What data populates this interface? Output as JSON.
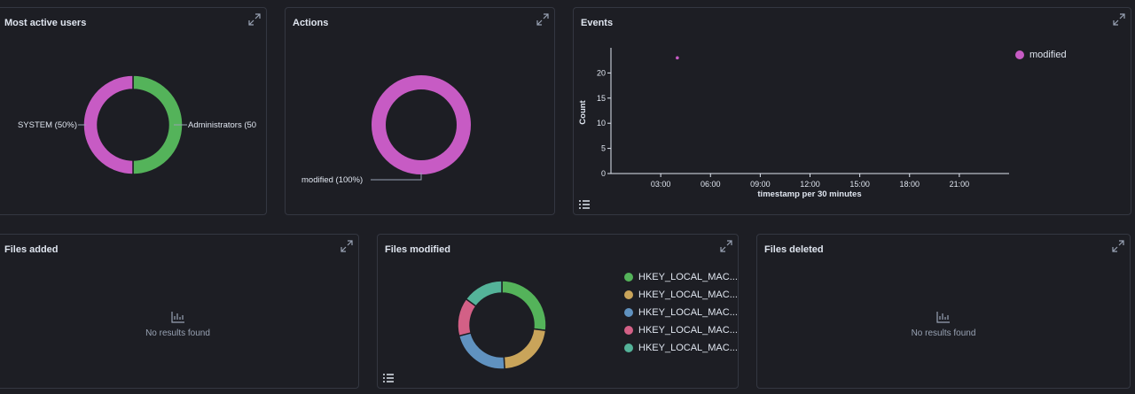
{
  "panels": {
    "most_active_users": {
      "title": "Most active users",
      "labels": [
        "SYSTEM (50%)",
        "Administrators (50"
      ]
    },
    "actions": {
      "title": "Actions",
      "labels": [
        "modified (100%)"
      ]
    },
    "events": {
      "title": "Events",
      "legend": [
        "modified"
      ],
      "ylabel": "Count",
      "xlabel": "timestamp per 30 minutes",
      "yticks": [
        "20",
        "15",
        "10",
        "5",
        "0"
      ],
      "xticks": [
        "03:00",
        "06:00",
        "09:00",
        "12:00",
        "15:00",
        "18:00",
        "21:00"
      ]
    },
    "files_added": {
      "title": "Files added",
      "empty_text": "No results found"
    },
    "files_modified": {
      "title": "Files modified",
      "legend": [
        "HKEY_LOCAL_MAC...",
        "HKEY_LOCAL_MAC...",
        "HKEY_LOCAL_MAC...",
        "HKEY_LOCAL_MAC...",
        "HKEY_LOCAL_MAC..."
      ]
    },
    "files_deleted": {
      "title": "Files deleted",
      "empty_text": "No results found"
    }
  },
  "icons": {
    "expand": "expand-icon",
    "legend_toggle": "list-icon",
    "empty": "visualization-empty-icon"
  },
  "colors": {
    "background": "#1d1e24",
    "border": "#343741",
    "green": "#54b35a",
    "pink": "#c75bc4",
    "tan": "#c9a45a",
    "blue": "#6092c0",
    "red": "#d36086",
    "teal": "#54b399"
  },
  "chart_data": [
    {
      "type": "pie",
      "categories": [
        "Administrators",
        "SYSTEM"
      ],
      "values": [
        50,
        50
      ],
      "colors": [
        "#54b35a",
        "#c75bc4"
      ]
    },
    {
      "type": "pie",
      "categories": [
        "modified"
      ],
      "values": [
        100
      ],
      "colors": [
        "#c75bc4"
      ]
    },
    {
      "type": "scatter",
      "series": [
        {
          "name": "modified",
          "x": [
            "04:00"
          ],
          "y": [
            23
          ]
        }
      ],
      "xlabel": "timestamp per 30 minutes",
      "ylabel": "Count",
      "ylim": [
        0,
        25
      ],
      "xlim": [
        "00:00",
        "24:00"
      ],
      "legend": "top-right"
    },
    {
      "type": "pie",
      "categories": [
        "HKEY_LOCAL_MAC...",
        "HKEY_LOCAL_MAC...",
        "HKEY_LOCAL_MAC...",
        "HKEY_LOCAL_MAC...",
        "HKEY_LOCAL_MAC..."
      ],
      "values": [
        27,
        22,
        22,
        14,
        15
      ],
      "colors": [
        "#54b35a",
        "#c9a45a",
        "#6092c0",
        "#d36086",
        "#54b399"
      ]
    }
  ]
}
